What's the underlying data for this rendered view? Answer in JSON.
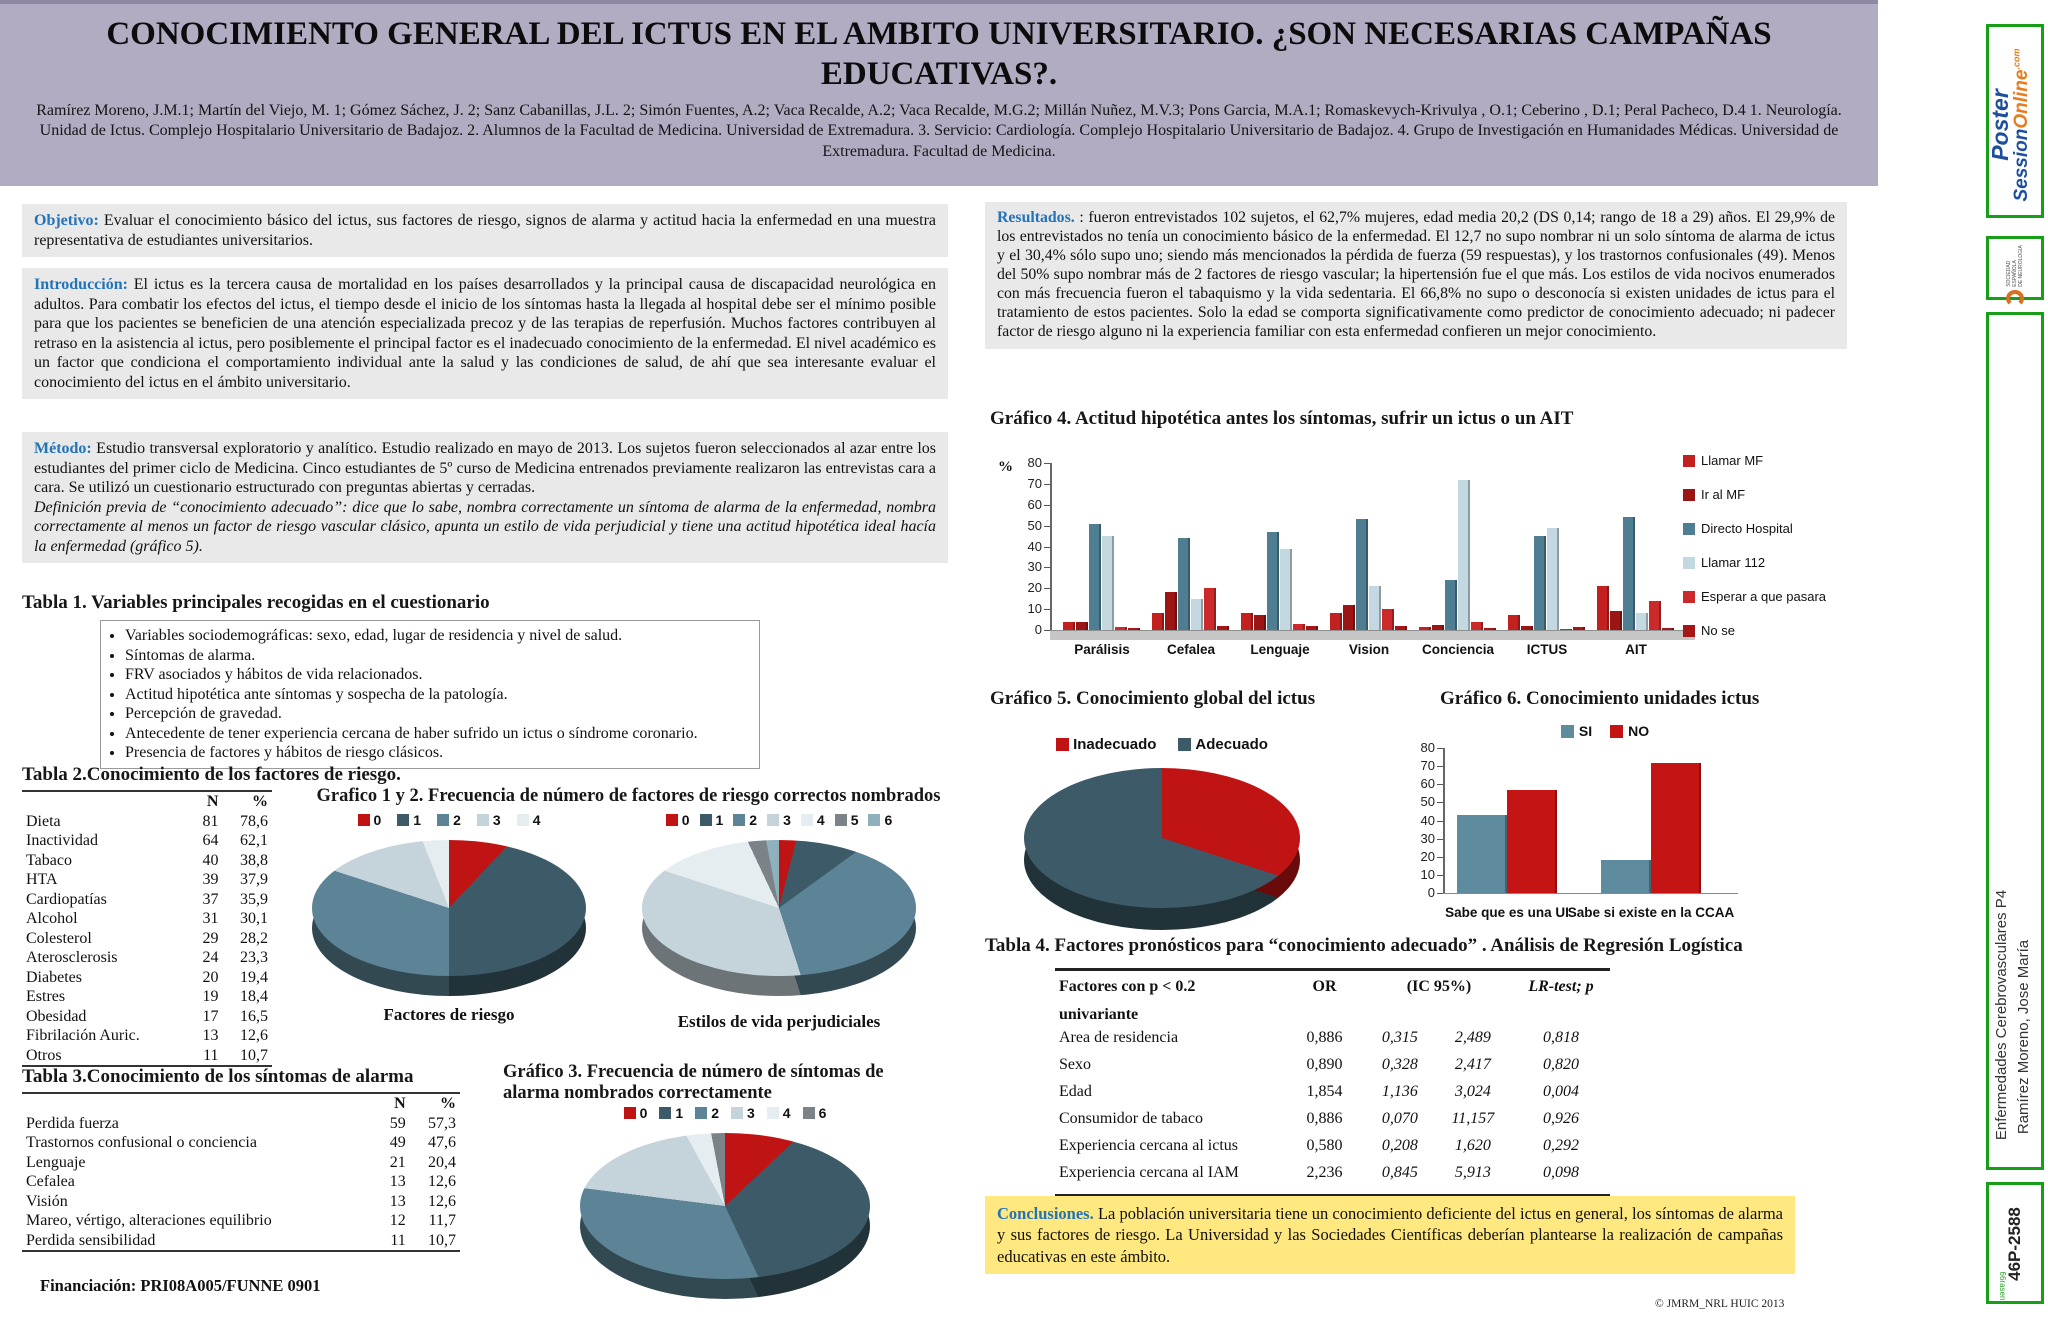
{
  "header": {
    "title": "CONOCIMIENTO GENERAL DEL ICTUS EN EL AMBITO UNIVERSITARIO. ¿SON NECESARIAS CAMPAÑAS EDUCATIVAS?.",
    "authors": "Ramírez Moreno, J.M.1; Martín del Viejo, M. 1; Gómez Sáchez, J. 2; Sanz Cabanillas, J.L. 2; Simón Fuentes, A.2; Vaca Recalde, A.2; Vaca Recalde, M.G.2; Millán Nuñez, M.V.3; Pons Garcia, M.A.1; Romaskevych-Krivulya , O.1; Ceberino , D.1; Peral Pacheco, D.4 1. Neurología. Unidad de Ictus. Complejo Hospitalario Universitario de Badajoz. 2. Alumnos de la Facultad de Medicina. Universidad de Extremadura. 3. Servicio: Cardiología. Complejo Hospitalario Universitario de Badajoz. 4. Grupo de Investigación en Humanidades Médicas. Universidad de Extremadura. Facultad de Medicina."
  },
  "sections": {
    "objetivo": {
      "label": "Objetivo:",
      "text": "Evaluar el conocimiento básico del ictus, sus factores de riesgo, signos de alarma y actitud hacia la enfermedad en una muestra representativa de estudiantes universitarios."
    },
    "introduccion": {
      "label": "Introducción:",
      "text": "El ictus es la tercera causa de mortalidad en los países desarrollados y la principal causa de discapacidad neurológica en adultos. Para combatir los efectos del ictus, el tiempo desde el inicio de los síntomas hasta la llegada al hospital debe ser el mínimo posible para que los pacientes se beneficien de una atención especializada precoz y de las terapias de reperfusión. Muchos factores contribuyen al retraso en la asistencia al ictus, pero posiblemente el principal factor es el inadecuado conocimiento de la enfermedad. El nivel académico es un factor que condiciona el comportamiento individual ante la salud y las condiciones de salud, de ahí que sea interesante evaluar el conocimiento del ictus en el ámbito universitario."
    },
    "metodo": {
      "label": "Método:",
      "text": "Estudio transversal exploratorio y analítico. Estudio realizado en mayo de 2013. Los sujetos fueron seleccionados al azar entre los estudiantes del primer ciclo de Medicina. Cinco estudiantes de 5º curso de Medicina entrenados previamente realizaron las entrevistas cara a cara. Se utilizó un cuestionario estructurado con preguntas abiertas y cerradas.",
      "definition": "Definición previa de “conocimiento adecuado”: dice que lo sabe, nombra correctamente un síntoma de alarma de la enfermedad, nombra correctamente al menos un factor de riesgo vascular clásico, apunta un  estilo de vida perjudicial y tiene una actitud hipotética ideal hacía la enfermedad (gráfico 5)."
    },
    "resultados": {
      "label": "Resultados.",
      "text": ": fueron entrevistados 102 sujetos, el 62,7% mujeres, edad media 20,2 (DS 0,14; rango de 18 a 29) años. El 29,9% de los entrevistados no tenía un conocimiento básico de la enfermedad. El 12,7 no supo nombrar ni un solo síntoma de alarma de ictus y el 30,4% sólo supo uno; siendo más mencionados la pérdida de fuerza (59 respuestas), y los trastornos confusionales (49). Menos del 50% supo nombrar más de 2 factores de riesgo vascular; la hipertensión fue el que más. Los estilos de vida nocivos enumerados con más frecuencia fueron el tabaquismo y la vida sedentaria. El 66,8% no supo o desconocía si existen unidades de ictus para el tratamiento de estos pacientes. Solo la edad se comporta significativamente como predictor de conocimiento adecuado; ni padecer factor de riesgo alguno ni la experiencia familiar con esta enfermedad confieren un mejor conocimiento."
    },
    "conclusiones": {
      "label": "Conclusiones.",
      "text": "La población universitaria tiene un conocimiento deficiente del ictus en general, los síntomas de alarma y sus factores de riesgo. La Universidad y las Sociedades Científicas deberían plantearse la realización de campañas educativas en este ámbito."
    }
  },
  "tabla1": {
    "title": "Tabla 1. Variables principales recogidas en el cuestionario",
    "items": [
      "Variables sociodemográficas: sexo, edad, lugar de residencia y nivel de salud.",
      "Síntomas de alarma.",
      "FRV asociados y hábitos de vida relacionados.",
      "Actitud hipotética ante síntomas y sospecha de la patología.",
      "Percepción de gravedad.",
      "Antecedente de tener experiencia cercana de haber sufrido un ictus o síndrome coronario.",
      "Presencia de factores y hábitos de riesgo clásicos."
    ]
  },
  "tabla2": {
    "title": "Tabla 2.Conocimiento de los factores de riesgo.",
    "columns": [
      "N",
      "%"
    ],
    "rows": [
      [
        "Dieta",
        "81",
        "78,6"
      ],
      [
        "Inactividad",
        "64",
        "62,1"
      ],
      [
        "Tabaco",
        "40",
        "38,8"
      ],
      [
        "HTA",
        "39",
        "37,9"
      ],
      [
        "Cardiopatías",
        "37",
        "35,9"
      ],
      [
        "Alcohol",
        "31",
        "30,1"
      ],
      [
        "Colesterol",
        "29",
        "28,2"
      ],
      [
        "Aterosclerosis",
        "24",
        "23,3"
      ],
      [
        "Diabetes",
        "20",
        "19,4"
      ],
      [
        "Estres",
        "19",
        "18,4"
      ],
      [
        "Obesidad",
        "17",
        "16,5"
      ],
      [
        "Fibrilación Auric.",
        "13",
        "12,6"
      ],
      [
        "Otros",
        "11",
        "10,7"
      ]
    ]
  },
  "tabla3": {
    "title": "Tabla 3.Conocimiento de los síntomas de alarma",
    "columns": [
      "N",
      "%"
    ],
    "rows": [
      [
        "Perdida fuerza",
        "59",
        "57,3"
      ],
      [
        "Trastornos confusional o conciencia",
        "49",
        "47,6"
      ],
      [
        "Lenguaje",
        "21",
        "20,4"
      ],
      [
        "Cefalea",
        "13",
        "12,6"
      ],
      [
        "Visión",
        "13",
        "12,6"
      ],
      [
        "Mareo, vértigo, alteraciones equilibrio",
        "12",
        "11,7"
      ],
      [
        "Perdida sensibilidad",
        "11",
        "10,7"
      ]
    ]
  },
  "tabla4": {
    "title": "Tabla 4. Factores pronósticos para “conocimiento adecuado” . Análisis de Regresión Logística",
    "header": {
      "col1a": "Factores con p < 0.2",
      "col1b": "univariante",
      "col2": "OR",
      "col3": "(IC 95%)",
      "col4": "LR-test; p"
    },
    "rows": [
      [
        "Area de residencia",
        "0,886",
        "0,315",
        "2,489",
        "0,818"
      ],
      [
        "Sexo",
        "0,890",
        "0,328",
        "2,417",
        "0,820"
      ],
      [
        "Edad",
        "1,854",
        "1,136",
        "3,024",
        "0,004"
      ],
      [
        "Consumidor de tabaco",
        "0,886",
        "0,070",
        "11,157",
        "0,926"
      ],
      [
        "Experiencia cercana al ictus",
        "0,580",
        "0,208",
        "1,620",
        "0,292"
      ],
      [
        "Experiencia cercana al IAM",
        "2,236",
        "0,845",
        "5,913",
        "0,098"
      ]
    ]
  },
  "financiacion": "Financiación: PRI08A005/FUNNE 0901",
  "credit": "© JMRM_NRL HUIC 2013",
  "sidebar": {
    "logo_poster_line1": "Poster",
    "logo_session": "Session",
    "logo_online": "Online",
    "logo_com": ".com",
    "logo_sen_line1": "SOCIEDAD ESPAÑOLA",
    "logo_sen_line2": "DE NEUROLOGIA",
    "session_line1": "Enfermedades Cerebrovasculares P4",
    "session_line2": "Ramírez Moreno, Jose María",
    "poster_code": "46P-2588",
    "print_mark": "66rasen"
  },
  "chart_data": [
    {
      "id": "grafico1",
      "type": "pie",
      "title": "Grafico 1 y 2. Frecuencia de número de factores de riesgo correctos nombrados",
      "caption": "Factores de riesgo",
      "labels": [
        "0",
        "1",
        "2",
        "3",
        "4"
      ],
      "values": [
        12,
        38,
        30,
        14,
        6
      ],
      "colors": [
        "#c01414",
        "#3d5a68",
        "#5d8496",
        "#c5d3da",
        "#e6edf0"
      ],
      "legend_position": "top"
    },
    {
      "id": "grafico2",
      "type": "pie",
      "caption": "Estilos de vida perjudiciales",
      "labels": [
        "0",
        "1",
        "2",
        "3",
        "4",
        "5",
        "6"
      ],
      "values": [
        4,
        11,
        30,
        35,
        13,
        4,
        3
      ],
      "colors": [
        "#c01414",
        "#3d5a68",
        "#5d8496",
        "#c5d3da",
        "#e6edf0",
        "#7c8388",
        "#8fb0bd"
      ],
      "legend_position": "top"
    },
    {
      "id": "grafico3",
      "type": "pie",
      "title": "Gráfico 3. Frecuencia de número de síntomas de alarma nombrados correctamente",
      "labels": [
        "0",
        "1",
        "2",
        "3",
        "4",
        "6"
      ],
      "values": [
        13,
        30,
        34,
        15,
        5,
        3
      ],
      "colors": [
        "#c01414",
        "#3d5a68",
        "#5d8496",
        "#c5d3da",
        "#e6edf0",
        "#7c8388"
      ],
      "legend_position": "top"
    },
    {
      "id": "grafico4",
      "type": "bar",
      "title": "Gráfico 4. Actitud hipotética antes los síntomas, sufrir un ictus o un AIT",
      "ylabel": "%",
      "ylim": [
        0,
        80
      ],
      "yticks": [
        0,
        10,
        20,
        30,
        40,
        50,
        60,
        70,
        80
      ],
      "grid": false,
      "legend_position": "right",
      "categories": [
        "Parálisis",
        "Cefalea",
        "Lenguaje",
        "Vision",
        "Conciencia",
        "ICTUS",
        "AIT"
      ],
      "series": [
        {
          "name": "Llamar MF",
          "color": "#c32020",
          "values": [
            4,
            8,
            8,
            8,
            1.5,
            7,
            21
          ]
        },
        {
          "name": "Ir al MF",
          "color": "#9c1515",
          "values": [
            4,
            18,
            7,
            12,
            2.5,
            2,
            9
          ]
        },
        {
          "name": "Directo Hospital",
          "color": "#4f7d92",
          "values": [
            51,
            44,
            47,
            53,
            24,
            45,
            54
          ]
        },
        {
          "name": "Llamar 112",
          "color": "#c3d8e0",
          "values": [
            45,
            15,
            39,
            21,
            72,
            49,
            8
          ]
        },
        {
          "name": "Esperar a que pasara",
          "color": "#cc2a2a",
          "values": [
            1.5,
            20,
            3,
            10,
            4,
            0.5,
            14
          ]
        },
        {
          "name": "No se",
          "color": "#a51616",
          "values": [
            1,
            2,
            2,
            2,
            1,
            1.5,
            1
          ]
        }
      ]
    },
    {
      "id": "grafico5",
      "type": "pie",
      "title": "Gráfico 5. Conocimiento global del ictus",
      "labels": [
        "Inadecuado",
        "Adecuado"
      ],
      "values": [
        30,
        70
      ],
      "colors": [
        "#c01414",
        "#3d5a68"
      ],
      "legend_position": "top"
    },
    {
      "id": "grafico6",
      "type": "bar",
      "title": "Gráfico 6. Conocimiento unidades ictus",
      "ylim": [
        0,
        80
      ],
      "yticks": [
        0,
        10,
        20,
        30,
        40,
        50,
        60,
        70,
        80
      ],
      "grid": false,
      "legend_position": "top",
      "categories": [
        "Sabe que es una UI",
        "Sabe si existe en la CCAA"
      ],
      "series": [
        {
          "name": "SI",
          "color": "#5e8c9e",
          "values": [
            43,
            18
          ]
        },
        {
          "name": "NO",
          "color": "#c41414",
          "values": [
            57,
            72
          ]
        }
      ]
    }
  ]
}
